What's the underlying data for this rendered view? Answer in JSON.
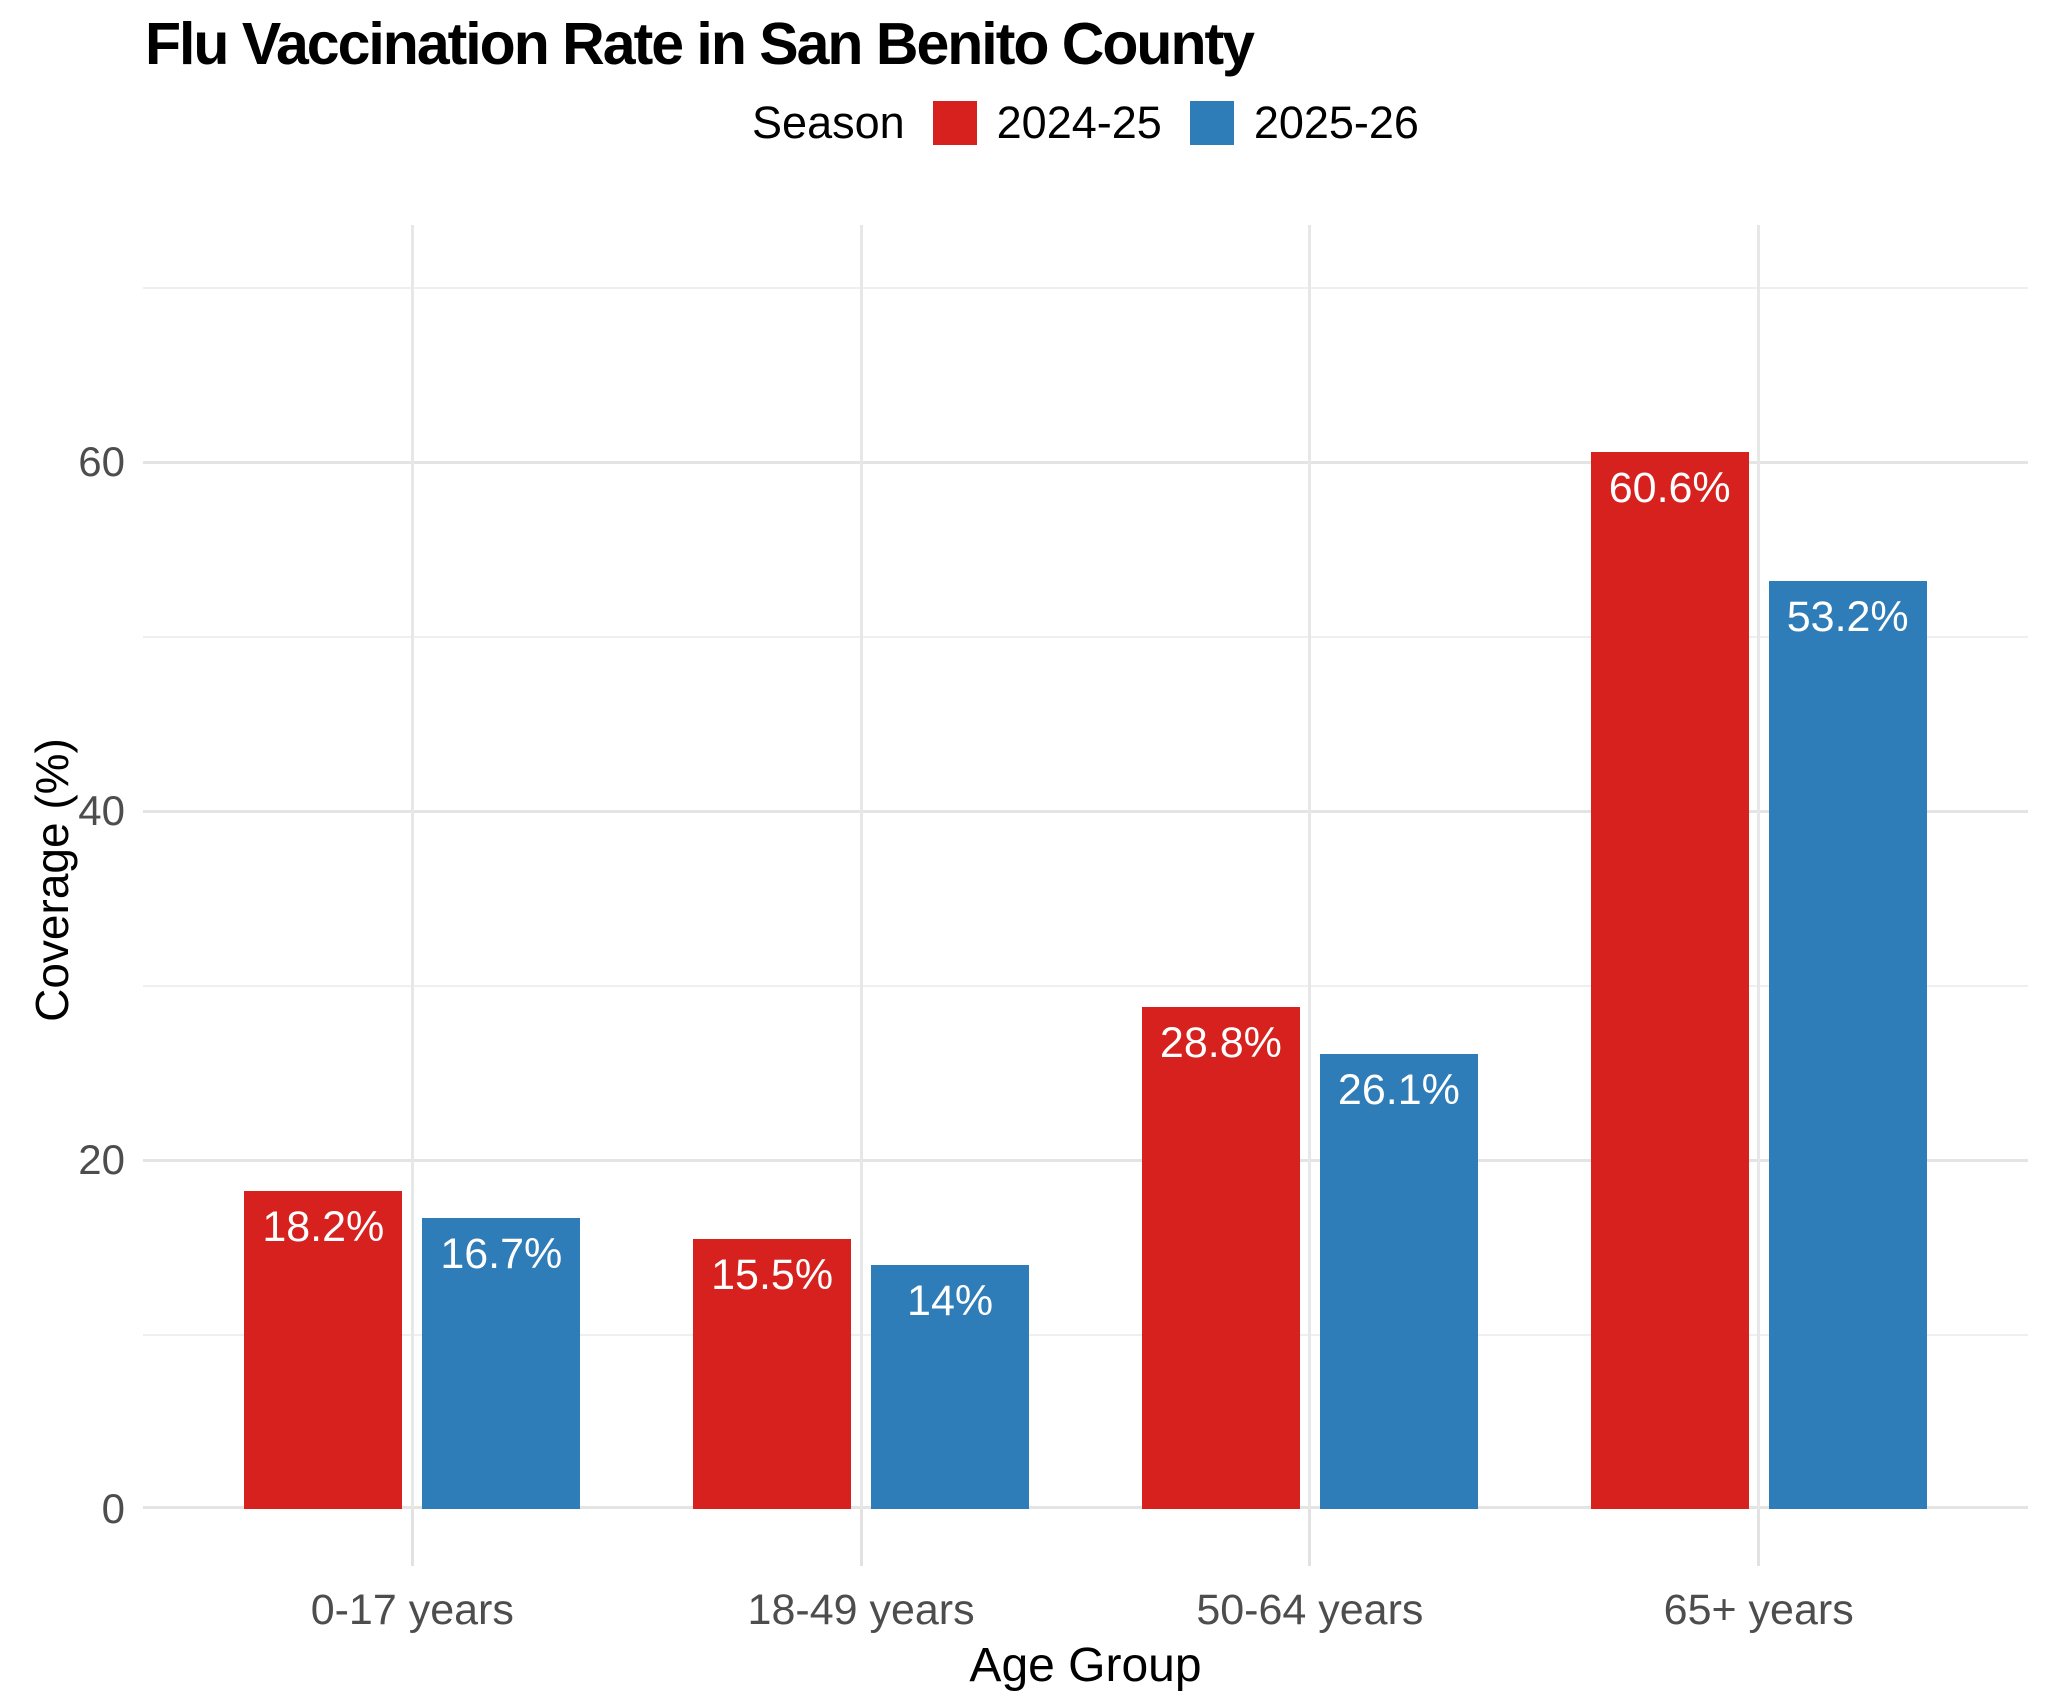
{
  "chart_data": {
    "type": "bar",
    "title": "Flu Vaccination Rate in San Benito County",
    "legend_title": "Season",
    "legend_position": "top",
    "categories": [
      "0-17 years",
      "18-49 years",
      "50-64 years",
      "65+ years"
    ],
    "series": [
      {
        "name": "2024-25",
        "color": "#d7211e",
        "values": [
          18.2,
          15.5,
          28.8,
          60.6
        ],
        "labels": [
          "18.2%",
          "15.5%",
          "28.8%",
          "60.6%"
        ]
      },
      {
        "name": "2025-26",
        "color": "#2e7cb8",
        "values": [
          16.7,
          14,
          26.1,
          53.2
        ],
        "labels": [
          "16.7%",
          "14%",
          "26.1%",
          "53.2%"
        ]
      }
    ],
    "xlabel": "Age Group",
    "ylabel": "Coverage (%)",
    "ylim": [
      0,
      73.6
    ],
    "yticks": [
      0,
      20,
      40,
      60
    ],
    "yticks_minor": [
      10,
      30,
      50,
      70
    ],
    "grid": true
  },
  "colors": {
    "background": "#ffffff",
    "grid_major": "#e4e4e4",
    "grid_minor": "#efefef",
    "tick": "#e2e2e2",
    "axis_text": "#4d4d4d",
    "bar_label_text": "#ffffff"
  }
}
